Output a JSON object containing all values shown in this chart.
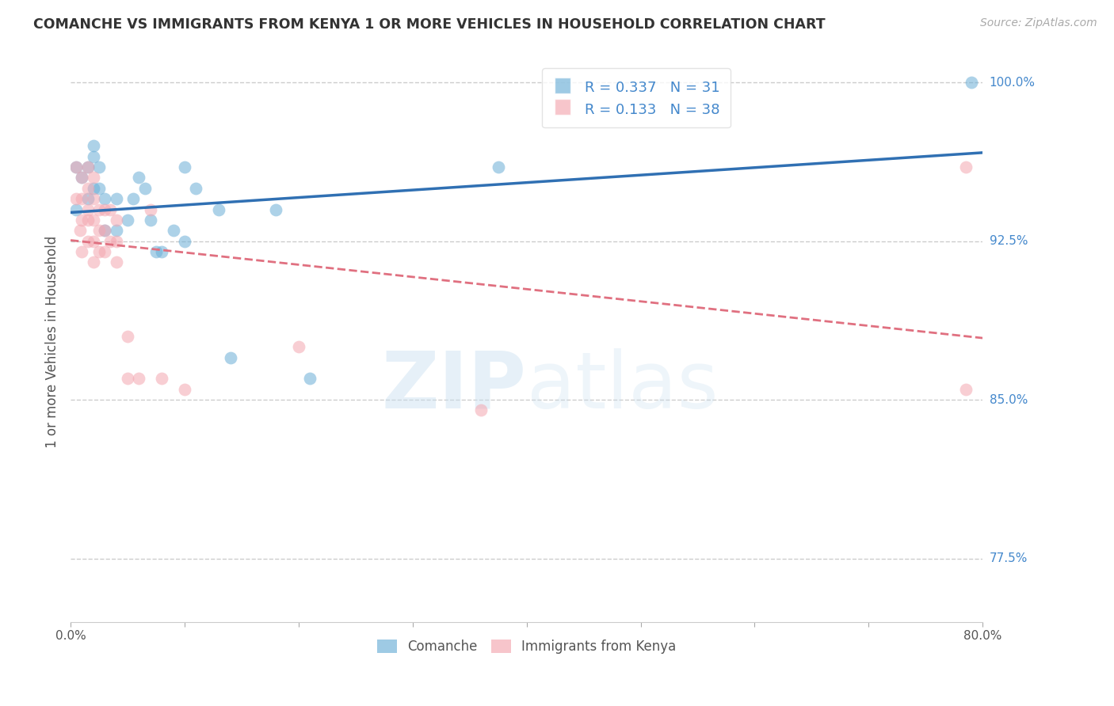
{
  "title": "COMANCHE VS IMMIGRANTS FROM KENYA 1 OR MORE VEHICLES IN HOUSEHOLD CORRELATION CHART",
  "source_text": "Source: ZipAtlas.com",
  "ylabel": "1 or more Vehicles in Household",
  "xlim": [
    0.0,
    0.8
  ],
  "ylim": [
    0.745,
    1.01
  ],
  "xticks": [
    0.0,
    0.1,
    0.2,
    0.3,
    0.4,
    0.5,
    0.6,
    0.7,
    0.8
  ],
  "legend_R1": "0.337",
  "legend_N1": "31",
  "legend_R2": "0.133",
  "legend_N2": "38",
  "legend_label1": "Comanche",
  "legend_label2": "Immigrants from Kenya",
  "color_blue": "#6aaed6",
  "color_pink": "#f4a6b0",
  "color_blue_line": "#3070b3",
  "color_pink_line": "#e07080",
  "color_source": "#aaaaaa",
  "color_axis_right": "#4488cc",
  "color_legend_text": "#4488cc",
  "background_color": "#ffffff",
  "grid_color": "#cccccc",
  "right_ytick_vals": [
    0.775,
    0.85,
    0.925,
    1.0
  ],
  "right_ytick_labels": [
    "77.5%",
    "85.0%",
    "92.5%",
    "100.0%"
  ],
  "comanche_x": [
    0.005,
    0.005,
    0.01,
    0.015,
    0.015,
    0.02,
    0.02,
    0.02,
    0.025,
    0.025,
    0.03,
    0.03,
    0.04,
    0.04,
    0.05,
    0.055,
    0.06,
    0.065,
    0.07,
    0.075,
    0.08,
    0.09,
    0.1,
    0.1,
    0.11,
    0.13,
    0.14,
    0.18,
    0.21,
    0.375,
    0.79
  ],
  "comanche_y": [
    0.96,
    0.94,
    0.955,
    0.96,
    0.945,
    0.97,
    0.95,
    0.965,
    0.96,
    0.95,
    0.945,
    0.93,
    0.945,
    0.93,
    0.935,
    0.945,
    0.955,
    0.95,
    0.935,
    0.92,
    0.92,
    0.93,
    0.925,
    0.96,
    0.95,
    0.94,
    0.87,
    0.94,
    0.86,
    0.96,
    1.0
  ],
  "kenya_x": [
    0.005,
    0.005,
    0.008,
    0.01,
    0.01,
    0.01,
    0.01,
    0.015,
    0.015,
    0.015,
    0.015,
    0.015,
    0.02,
    0.02,
    0.02,
    0.02,
    0.02,
    0.025,
    0.025,
    0.025,
    0.03,
    0.03,
    0.03,
    0.035,
    0.035,
    0.04,
    0.04,
    0.04,
    0.05,
    0.05,
    0.06,
    0.07,
    0.08,
    0.1,
    0.2,
    0.36,
    0.785,
    0.785
  ],
  "kenya_y": [
    0.96,
    0.945,
    0.93,
    0.955,
    0.945,
    0.935,
    0.92,
    0.96,
    0.95,
    0.94,
    0.935,
    0.925,
    0.955,
    0.945,
    0.935,
    0.925,
    0.915,
    0.94,
    0.93,
    0.92,
    0.94,
    0.93,
    0.92,
    0.94,
    0.925,
    0.935,
    0.925,
    0.915,
    0.88,
    0.86,
    0.86,
    0.94,
    0.86,
    0.855,
    0.875,
    0.845,
    0.96,
    0.855
  ]
}
